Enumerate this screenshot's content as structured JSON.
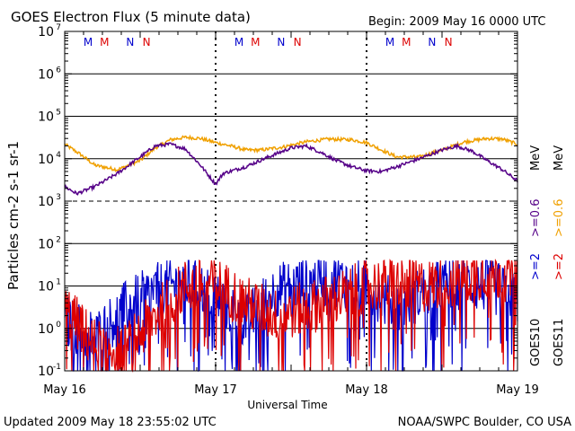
{
  "header": {
    "title": "GOES Electron Flux (5 minute data)",
    "begin": "Begin: 2009 May 16 0000 UTC"
  },
  "footer": {
    "updated": "Updated 2009 May 18 23:55:02 UTC",
    "credit": "NOAA/SWPC Boulder, CO USA"
  },
  "chart_data": {
    "type": "line",
    "title": "GOES Electron Flux (5 minute data)",
    "xlabel": "Universal Time",
    "ylabel": "Particles cm-2 s-1 sr-1",
    "y_scale": "log",
    "ylim": [
      0.1,
      10000000
    ],
    "xlim": [
      "2009-05-16 00:00",
      "2009-05-19 00:00"
    ],
    "x_ticks": [
      "May 16",
      "May 17",
      "May 18",
      "May 19"
    ],
    "y_ticks": [
      {
        "base": "10",
        "exp": "-1"
      },
      {
        "base": "10",
        "exp": "0"
      },
      {
        "base": "10",
        "exp": "1"
      },
      {
        "base": "10",
        "exp": "2"
      },
      {
        "base": "10",
        "exp": "3"
      },
      {
        "base": "10",
        "exp": "4"
      },
      {
        "base": "10",
        "exp": "5"
      },
      {
        "base": "10",
        "exp": "6"
      },
      {
        "base": "10",
        "exp": "7"
      }
    ],
    "threshold_line": 1000,
    "day_markers": [
      {
        "label": "M",
        "day": 0,
        "color": "#0000cc",
        "sat": "GOES10"
      },
      {
        "label": "M",
        "day": 0,
        "color": "#dd0000",
        "sat": "GOES11"
      },
      {
        "label": "N",
        "day": 0,
        "color": "#0000cc",
        "sat": "GOES10"
      },
      {
        "label": "N",
        "day": 0,
        "color": "#dd0000",
        "sat": "GOES11"
      },
      {
        "label": "M",
        "day": 1,
        "color": "#0000cc",
        "sat": "GOES10"
      },
      {
        "label": "M",
        "day": 1,
        "color": "#dd0000",
        "sat": "GOES11"
      },
      {
        "label": "N",
        "day": 1,
        "color": "#0000cc",
        "sat": "GOES10"
      },
      {
        "label": "N",
        "day": 1,
        "color": "#dd0000",
        "sat": "GOES11"
      },
      {
        "label": "M",
        "day": 2,
        "color": "#0000cc",
        "sat": "GOES10"
      },
      {
        "label": "M",
        "day": 2,
        "color": "#dd0000",
        "sat": "GOES11"
      },
      {
        "label": "N",
        "day": 2,
        "color": "#0000cc",
        "sat": "GOES10"
      },
      {
        "label": "N",
        "day": 2,
        "color": "#dd0000",
        "sat": "GOES11"
      }
    ],
    "legend": {
      "placement": "right",
      "groups": [
        {
          "satellite": "GOES10",
          "unit": "MeV",
          "entries": [
            {
              "label": ">=2",
              "color": "#0000cc"
            },
            {
              "label": ">=0.6",
              "color": "#550088"
            }
          ]
        },
        {
          "satellite": "GOES11",
          "unit": "MeV",
          "entries": [
            {
              "label": ">=2",
              "color": "#dd0000"
            },
            {
              "label": ">=0.6",
              "color": "#f0a000"
            }
          ]
        }
      ]
    },
    "series": [
      {
        "name": "GOES10 >=0.6 MeV",
        "color": "#550088",
        "x_days": [
          0,
          0.08,
          0.2,
          0.35,
          0.5,
          0.6,
          0.7,
          0.8,
          0.9,
          1.0,
          1.05,
          1.2,
          1.35,
          1.5,
          1.6,
          1.7,
          1.8,
          1.9,
          2.0,
          2.1,
          2.2,
          2.35,
          2.5,
          2.6,
          2.7,
          2.8,
          2.9,
          3.0
        ],
        "y": [
          2200,
          1500,
          2200,
          4500,
          11000,
          20000,
          22000,
          17000,
          7000,
          2500,
          4500,
          6500,
          11000,
          18000,
          20000,
          14000,
          9000,
          6500,
          5200,
          5000,
          6500,
          10000,
          16000,
          20000,
          15000,
          9000,
          5500,
          3000
        ]
      },
      {
        "name": "GOES11 >=0.6 MeV",
        "color": "#f0a000",
        "x_days": [
          0,
          0.1,
          0.2,
          0.35,
          0.5,
          0.6,
          0.7,
          0.8,
          0.9,
          1.0,
          1.1,
          1.2,
          1.3,
          1.45,
          1.6,
          1.75,
          1.9,
          2.0,
          2.1,
          2.2,
          2.35,
          2.5,
          2.65,
          2.8,
          2.9,
          3.0
        ],
        "y": [
          22000,
          13000,
          7000,
          5500,
          9000,
          18000,
          28000,
          32000,
          30000,
          24000,
          20000,
          16000,
          16000,
          19000,
          25000,
          29000,
          28000,
          24000,
          16000,
          11000,
          11000,
          16000,
          25000,
          30000,
          29000,
          22000
        ]
      },
      {
        "name": "GOES10 >=2 MeV",
        "color": "#0000cc",
        "x_days": [
          0,
          0.2,
          0.4,
          0.6,
          0.8,
          1.0,
          1.2,
          1.4,
          1.6,
          1.8,
          2.0,
          2.2,
          2.4,
          2.6,
          2.8,
          3.0
        ],
        "y": [
          1.5,
          0.6,
          3,
          8,
          12,
          6,
          1.5,
          8,
          12,
          14,
          10,
          3,
          8,
          12,
          10,
          6
        ]
      },
      {
        "name": "GOES11 >=2 MeV",
        "color": "#dd0000",
        "x_days": [
          0,
          0.2,
          0.4,
          0.6,
          0.8,
          1.0,
          1.2,
          1.4,
          1.6,
          1.8,
          2.0,
          2.2,
          2.4,
          2.6,
          2.8,
          3.0
        ],
        "y": [
          3,
          0.4,
          0.3,
          2,
          10,
          12,
          4,
          2,
          3,
          5,
          10,
          12,
          10,
          14,
          22,
          16
        ]
      }
    ]
  }
}
